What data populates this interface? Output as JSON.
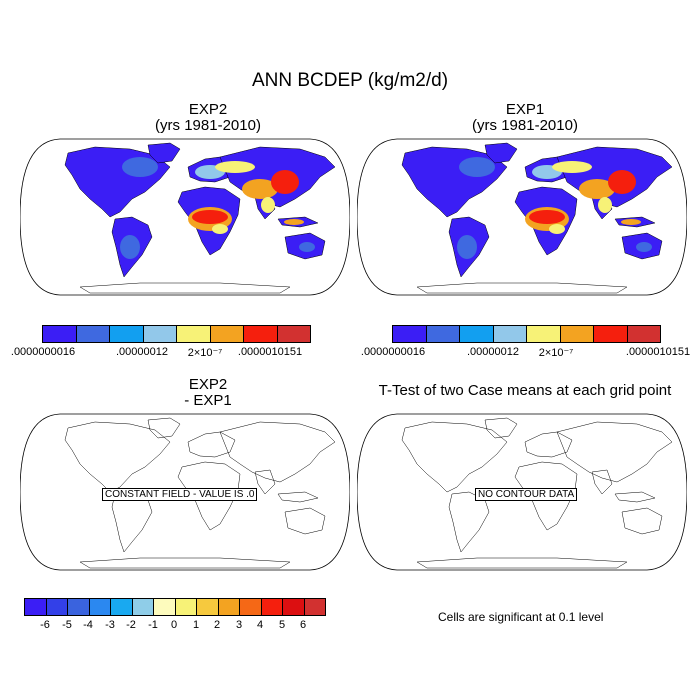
{
  "title": "ANN BCDEP (kg/m2/d)",
  "panels": {
    "exp2": {
      "title_line1": "EXP2",
      "title_line2": "(yrs 1981-2010)"
    },
    "exp1": {
      "title_line1": "EXP1",
      "title_line2": "(yrs 1981-2010)"
    },
    "diff": {
      "title_line1": "EXP2",
      "title_line2": "- EXP1",
      "note": "CONSTANT FIELD - VALUE IS .0"
    },
    "ttest": {
      "title": "T-Test of two Case means at each grid point",
      "note": "NO CONTOUR DATA",
      "significance": "Cells are significant at 0.1 level"
    }
  },
  "colorbar_top": {
    "colors": [
      "#3b1ef5",
      "#3f69e0",
      "#129ff0",
      "#92c8ea",
      "#f7f277",
      "#f3a321",
      "#f51f0d",
      "#d23130"
    ],
    "labels": [
      ".0000000016",
      ".00000012",
      "2×10⁻⁷",
      ".0000010151"
    ]
  },
  "colorbar_diff": {
    "colors": [
      "#3b1ef5",
      "#3340e8",
      "#3a63de",
      "#2b88f0",
      "#19a9f0",
      "#8fcde8",
      "#fdfbbd",
      "#f7f277",
      "#f6c93e",
      "#f3a321",
      "#f56816",
      "#f51f0d",
      "#dc0f11",
      "#d23130"
    ],
    "labels": [
      "-6",
      "-5",
      "-4",
      "-3",
      "-2",
      "-1",
      "0",
      "1",
      "2",
      "3",
      "4",
      "5",
      "6"
    ]
  },
  "map_fill": {
    "ocean": "#ffffff",
    "low": "#3b1ef5",
    "mid_blue": "#3f69e0",
    "light_blue": "#92c8ea",
    "yellow": "#f7f277",
    "orange": "#f3a321",
    "red": "#f51f0d",
    "dark_red": "#d23130"
  }
}
